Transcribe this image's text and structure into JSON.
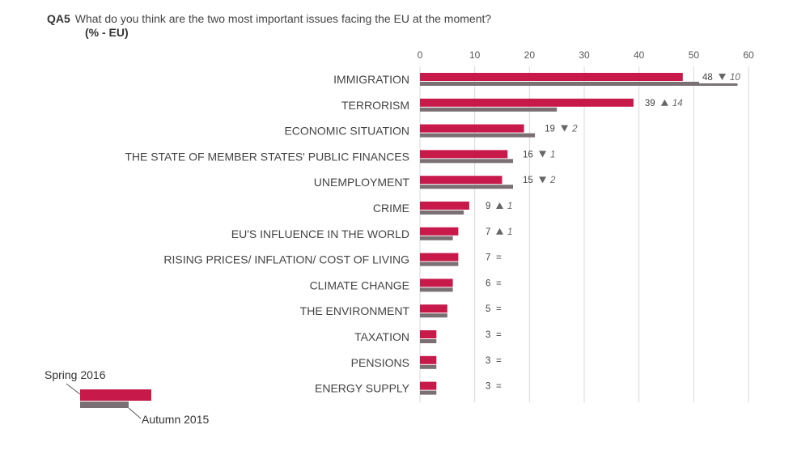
{
  "header": {
    "code": "QA5",
    "question": "What do you think are the two most important issues facing the EU at the moment?",
    "unit": "(% - EU)"
  },
  "colors": {
    "current": "#c8194b",
    "previous": "#7a7073",
    "grid": "#d9d9d9"
  },
  "chart_data": {
    "type": "bar",
    "orientation": "horizontal",
    "xlim": [
      0,
      60
    ],
    "xticks": [
      0,
      10,
      20,
      30,
      40,
      50,
      60
    ],
    "categories": [
      "IMMIGRATION",
      "TERRORISM",
      "ECONOMIC SITUATION",
      "THE STATE OF MEMBER STATES' PUBLIC FINANCES",
      "UNEMPLOYMENT",
      "CRIME",
      "EU'S INFLUENCE IN THE WORLD",
      "RISING PRICES/ INFLATION/ COST OF LIVING",
      "CLIMATE CHANGE",
      "THE ENVIRONMENT",
      "TAXATION",
      "PENSIONS",
      "ENERGY SUPPLY"
    ],
    "series": [
      {
        "name": "Spring 2016",
        "values": [
          48,
          39,
          19,
          16,
          15,
          9,
          7,
          7,
          6,
          5,
          3,
          3,
          3
        ]
      },
      {
        "name": "Autumn 2015",
        "values": [
          58,
          25,
          21,
          17,
          17,
          8,
          6,
          7,
          6,
          5,
          3,
          3,
          3
        ]
      }
    ],
    "changes": [
      {
        "dir": "down",
        "val": "10"
      },
      {
        "dir": "up",
        "val": "14"
      },
      {
        "dir": "down",
        "val": "2"
      },
      {
        "dir": "down",
        "val": "1"
      },
      {
        "dir": "down",
        "val": "2"
      },
      {
        "dir": "up",
        "val": "1"
      },
      {
        "dir": "up",
        "val": "1"
      },
      {
        "dir": "eq",
        "val": ""
      },
      {
        "dir": "eq",
        "val": ""
      },
      {
        "dir": "eq",
        "val": ""
      },
      {
        "dir": "eq",
        "val": ""
      },
      {
        "dir": "eq",
        "val": ""
      },
      {
        "dir": "eq",
        "val": ""
      }
    ],
    "legend": {
      "current": "Spring 2016",
      "previous": "Autumn 2015",
      "position": "bottom-left"
    }
  }
}
